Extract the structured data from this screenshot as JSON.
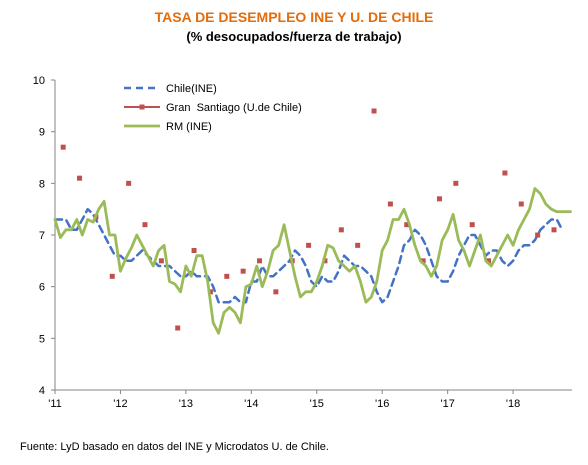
{
  "chart_data": {
    "type": "line",
    "title": "TASA DE DESEMPLEO INE Y U. DE CHILE",
    "subtitle": "(% desocupados/fuerza de trabajo)",
    "ylim": [
      4,
      10
    ],
    "y_ticks": [
      "4",
      "5",
      "6",
      "7",
      "8",
      "9",
      "10"
    ],
    "x_tick_labels": [
      "'11",
      "'12",
      "'13",
      "'14",
      "'15",
      "'16",
      "'17",
      "'18"
    ],
    "x_range": [
      2011.0,
      2018.9
    ],
    "legend_position": "top-left",
    "series": [
      {
        "name": "Chile(INE)",
        "style": "dashed",
        "color": "#4472C4",
        "x": [
          2011.0,
          2011.083,
          2011.167,
          2011.25,
          2011.333,
          2011.417,
          2011.5,
          2011.583,
          2011.667,
          2011.75,
          2011.833,
          2011.917,
          2012.0,
          2012.083,
          2012.167,
          2012.25,
          2012.333,
          2012.417,
          2012.5,
          2012.583,
          2012.667,
          2012.75,
          2012.833,
          2012.917,
          2013.0,
          2013.083,
          2013.167,
          2013.25,
          2013.333,
          2013.417,
          2013.5,
          2013.583,
          2013.667,
          2013.75,
          2013.833,
          2013.917,
          2014.0,
          2014.083,
          2014.167,
          2014.25,
          2014.333,
          2014.417,
          2014.5,
          2014.583,
          2014.667,
          2014.75,
          2014.833,
          2014.917,
          2015.0,
          2015.083,
          2015.167,
          2015.25,
          2015.333,
          2015.417,
          2015.5,
          2015.583,
          2015.667,
          2015.75,
          2015.833,
          2015.917,
          2016.0,
          2016.083,
          2016.167,
          2016.25,
          2016.333,
          2016.417,
          2016.5,
          2016.583,
          2016.667,
          2016.75,
          2016.833,
          2016.917,
          2017.0,
          2017.083,
          2017.167,
          2017.25,
          2017.333,
          2017.417,
          2017.5,
          2017.583,
          2017.667,
          2017.75,
          2017.833,
          2017.917,
          2018.0,
          2018.083,
          2018.167,
          2018.25,
          2018.333,
          2018.417,
          2018.5,
          2018.583,
          2018.667,
          2018.75
        ],
        "values": [
          7.3,
          7.3,
          7.3,
          7.1,
          7.1,
          7.3,
          7.5,
          7.4,
          7.2,
          7.0,
          6.8,
          6.6,
          6.6,
          6.5,
          6.5,
          6.6,
          6.7,
          6.6,
          6.5,
          6.4,
          6.4,
          6.4,
          6.3,
          6.2,
          6.2,
          6.3,
          6.2,
          6.2,
          6.2,
          6.0,
          5.7,
          5.7,
          5.7,
          5.8,
          5.7,
          5.7,
          6.1,
          6.1,
          6.4,
          6.2,
          6.2,
          6.3,
          6.4,
          6.5,
          6.7,
          6.6,
          6.4,
          6.1,
          6.0,
          6.2,
          6.1,
          6.1,
          6.3,
          6.6,
          6.5,
          6.4,
          6.4,
          6.3,
          6.2,
          5.9,
          5.7,
          5.8,
          6.1,
          6.4,
          6.8,
          6.9,
          7.1,
          7.0,
          6.8,
          6.5,
          6.2,
          6.1,
          6.1,
          6.3,
          6.6,
          6.8,
          7.0,
          7.0,
          6.8,
          6.6,
          6.7,
          6.7,
          6.5,
          6.4,
          6.5,
          6.7,
          6.8,
          6.8,
          6.9,
          7.1,
          7.2,
          7.3,
          7.3,
          7.1
        ]
      },
      {
        "name": "Gran  Santiago (U.de Chile)",
        "style": "markers",
        "color": "#C0504D",
        "x": [
          2011.125,
          2011.375,
          2011.625,
          2011.875,
          2012.125,
          2012.375,
          2012.625,
          2012.875,
          2013.125,
          2013.375,
          2013.625,
          2013.875,
          2014.125,
          2014.375,
          2014.625,
          2014.875,
          2015.125,
          2015.375,
          2015.625,
          2015.875,
          2016.125,
          2016.375,
          2016.625,
          2016.875,
          2017.125,
          2017.375,
          2017.625,
          2017.875,
          2018.125,
          2018.375,
          2018.625
        ],
        "values": [
          8.7,
          8.1,
          7.35,
          6.2,
          8.0,
          7.2,
          6.5,
          5.2,
          6.7,
          5.9,
          6.2,
          6.3,
          6.5,
          5.9,
          6.5,
          6.8,
          6.5,
          7.1,
          6.8,
          9.4,
          7.6,
          7.2,
          6.5,
          7.7,
          8.0,
          7.2,
          6.5,
          8.2,
          7.6,
          7.0,
          7.1
        ]
      },
      {
        "name": "RM (INE)",
        "style": "solid",
        "color": "#9BBB59",
        "x": [
          2011.0,
          2011.083,
          2011.167,
          2011.25,
          2011.333,
          2011.417,
          2011.5,
          2011.583,
          2011.667,
          2011.75,
          2011.833,
          2011.917,
          2012.0,
          2012.083,
          2012.167,
          2012.25,
          2012.333,
          2012.417,
          2012.5,
          2012.583,
          2012.667,
          2012.75,
          2012.833,
          2012.917,
          2013.0,
          2013.083,
          2013.167,
          2013.25,
          2013.333,
          2013.417,
          2013.5,
          2013.583,
          2013.667,
          2013.75,
          2013.833,
          2013.917,
          2014.0,
          2014.083,
          2014.167,
          2014.25,
          2014.333,
          2014.417,
          2014.5,
          2014.583,
          2014.667,
          2014.75,
          2014.833,
          2014.917,
          2015.0,
          2015.083,
          2015.167,
          2015.25,
          2015.333,
          2015.417,
          2015.5,
          2015.583,
          2015.667,
          2015.75,
          2015.833,
          2015.917,
          2016.0,
          2016.083,
          2016.167,
          2016.25,
          2016.333,
          2016.417,
          2016.5,
          2016.583,
          2016.667,
          2016.75,
          2016.833,
          2016.917,
          2017.0,
          2017.083,
          2017.167,
          2017.25,
          2017.333,
          2017.417,
          2017.5,
          2017.583,
          2017.667,
          2017.75,
          2017.833,
          2017.917,
          2018.0,
          2018.083,
          2018.167,
          2018.25,
          2018.333,
          2018.417,
          2018.5,
          2018.583,
          2018.667,
          2018.75,
          2018.833,
          2018.875
        ],
        "values": [
          7.3,
          6.95,
          7.1,
          7.1,
          7.3,
          7.0,
          7.3,
          7.25,
          7.5,
          7.65,
          7.0,
          7.0,
          6.3,
          6.55,
          6.75,
          7.0,
          6.8,
          6.6,
          6.4,
          6.7,
          6.8,
          6.1,
          6.05,
          5.9,
          6.4,
          6.2,
          6.6,
          6.6,
          6.1,
          5.3,
          5.1,
          5.5,
          5.6,
          5.5,
          5.3,
          6.0,
          6.05,
          6.4,
          6.0,
          6.3,
          6.7,
          6.8,
          7.2,
          6.7,
          6.2,
          5.8,
          5.9,
          5.9,
          6.1,
          6.4,
          6.8,
          6.75,
          6.5,
          6.4,
          6.3,
          6.4,
          6.1,
          5.7,
          5.8,
          6.1,
          6.7,
          6.9,
          7.3,
          7.3,
          7.5,
          7.2,
          6.8,
          6.5,
          6.4,
          6.2,
          6.4,
          6.9,
          7.1,
          7.4,
          6.9,
          6.7,
          6.4,
          6.7,
          7.0,
          6.5,
          6.4,
          6.6,
          6.8,
          7.0,
          6.8,
          7.1,
          7.3,
          7.5,
          7.9,
          7.8,
          7.6,
          7.5,
          7.45,
          7.45,
          7.45,
          7.45
        ]
      }
    ]
  },
  "source_note": "Fuente: LyD basado en datos del INE y Microdatos U. de Chile."
}
